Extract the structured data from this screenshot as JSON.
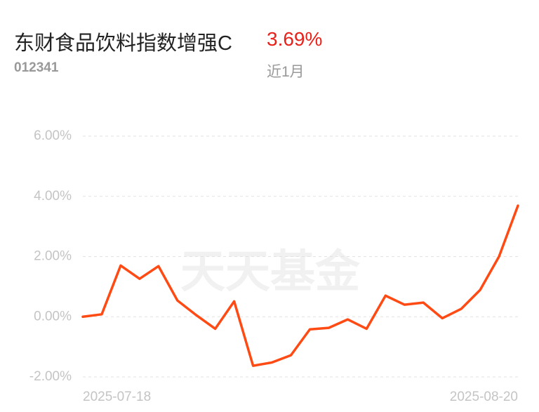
{
  "header": {
    "title": "东财食品饮料指数增强C",
    "code": "012341",
    "return": "3.69%",
    "period": "近1月",
    "watermark": "天天基金"
  },
  "chart_data": {
    "type": "line",
    "categories": [
      "2025-07-18",
      null,
      null,
      null,
      null,
      null,
      null,
      null,
      null,
      null,
      null,
      null,
      null,
      null,
      null,
      null,
      null,
      null,
      null,
      null,
      null,
      null,
      null,
      "2025-08-20"
    ],
    "series": [
      {
        "color": "#ff4a14",
        "values": [
          0.0,
          0.08,
          1.7,
          1.26,
          1.68,
          0.54,
          0.05,
          -0.4,
          0.51,
          -1.63,
          -1.52,
          -1.28,
          -0.42,
          -0.37,
          -0.09,
          -0.4,
          0.7,
          0.4,
          0.47,
          -0.05,
          0.26,
          0.89,
          2.0,
          3.69
        ]
      }
    ],
    "ylim": [
      -2,
      6
    ],
    "yticks": [
      {
        "value": -2,
        "label": "-2.00%"
      },
      {
        "value": 0,
        "label": "0.00%"
      },
      {
        "value": 2,
        "label": "2.00%"
      },
      {
        "value": 4,
        "label": "4.00%"
      },
      {
        "value": 6,
        "label": "6.00%"
      }
    ],
    "grid": true
  }
}
